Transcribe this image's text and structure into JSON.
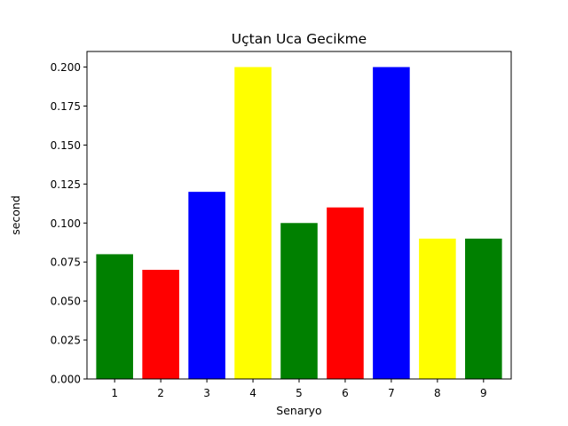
{
  "chart_data": {
    "type": "bar",
    "title": "Uçtan Uca Gecikme",
    "xlabel": "Senaryo",
    "ylabel": "second",
    "categories": [
      "1",
      "2",
      "3",
      "4",
      "5",
      "6",
      "7",
      "8",
      "9"
    ],
    "values": [
      0.08,
      0.07,
      0.12,
      0.2,
      0.1,
      0.11,
      0.2,
      0.09,
      0.09
    ],
    "colors": [
      "#008000",
      "#ff0000",
      "#0000ff",
      "#ffff00",
      "#008000",
      "#ff0000",
      "#0000ff",
      "#ffff00",
      "#008000"
    ],
    "ylim": [
      0,
      0.21
    ],
    "yticks": [
      "0.000",
      "0.025",
      "0.050",
      "0.075",
      "0.100",
      "0.125",
      "0.150",
      "0.175",
      "0.200"
    ],
    "grid": false,
    "legend": "none"
  }
}
